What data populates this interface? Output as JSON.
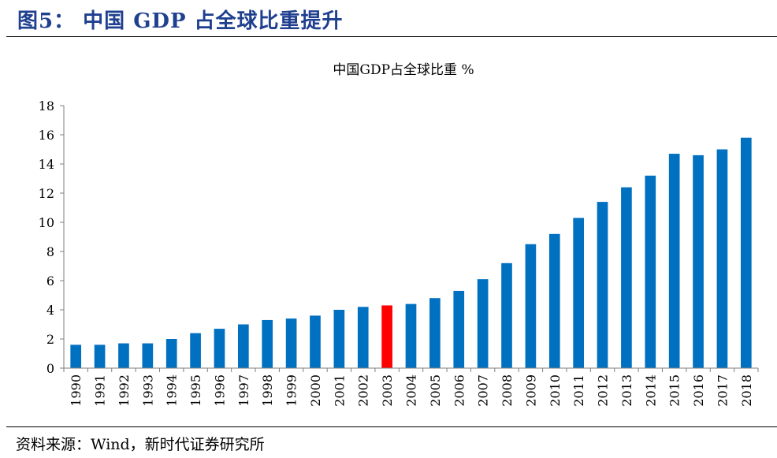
{
  "figure": {
    "title": "图5：  中国 GDP 占全球比重提升",
    "source": "资料来源：Wind，新时代证券研究所"
  },
  "chart_data": {
    "type": "bar",
    "title": "中国GDP占全球比重 %",
    "xlabel": "",
    "ylabel": "",
    "ylim": [
      0,
      18
    ],
    "yticks": [
      0,
      2,
      4,
      6,
      8,
      10,
      12,
      14,
      16,
      18
    ],
    "grid": false,
    "legend": "none",
    "categories": [
      "1990",
      "1991",
      "1992",
      "1993",
      "1994",
      "1995",
      "1996",
      "1997",
      "1998",
      "1999",
      "2000",
      "2001",
      "2002",
      "2003",
      "2004",
      "2005",
      "2006",
      "2007",
      "2008",
      "2009",
      "2010",
      "2011",
      "2012",
      "2013",
      "2014",
      "2015",
      "2016",
      "2017",
      "2018"
    ],
    "values": [
      1.6,
      1.6,
      1.7,
      1.7,
      2.0,
      2.4,
      2.7,
      3.0,
      3.3,
      3.4,
      3.6,
      4.0,
      4.2,
      4.3,
      4.4,
      4.8,
      5.3,
      6.1,
      7.2,
      8.5,
      9.2,
      10.3,
      11.4,
      12.4,
      13.2,
      14.7,
      14.6,
      15.0,
      15.8
    ],
    "highlight_category": "2003",
    "colors": {
      "bar": "#0070c0",
      "highlight": "#ff0000",
      "axis": "#7f7f7f",
      "text": "#000000"
    }
  }
}
